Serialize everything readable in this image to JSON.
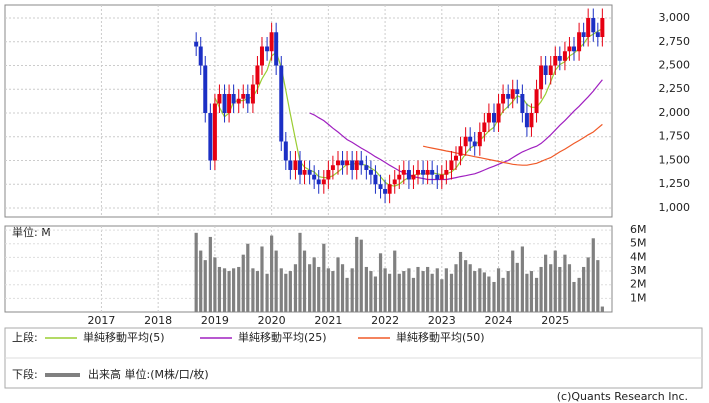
{
  "chart_data": {
    "type": "candlestick",
    "x": [
      2018.67,
      2018.75,
      2018.83,
      2018.92,
      2019,
      2019.08,
      2019.17,
      2019.25,
      2019.33,
      2019.42,
      2019.5,
      2019.58,
      2019.67,
      2019.75,
      2019.83,
      2019.92,
      2020,
      2020.08,
      2020.17,
      2020.25,
      2020.33,
      2020.42,
      2020.5,
      2020.58,
      2020.67,
      2020.75,
      2020.83,
      2020.92,
      2021,
      2021.08,
      2021.17,
      2021.25,
      2021.33,
      2021.42,
      2021.5,
      2021.58,
      2021.67,
      2021.75,
      2021.83,
      2021.92,
      2022,
      2022.08,
      2022.17,
      2022.25,
      2022.33,
      2022.42,
      2022.5,
      2022.58,
      2022.67,
      2022.75,
      2022.83,
      2022.92,
      2023,
      2023.08,
      2023.17,
      2023.25,
      2023.33,
      2023.42,
      2023.5,
      2023.58,
      2023.67,
      2023.75,
      2023.83,
      2023.92,
      2024,
      2024.08,
      2024.17,
      2024.25,
      2024.33,
      2024.42,
      2024.5,
      2024.58,
      2024.67,
      2024.75,
      2024.83,
      2024.92,
      2025,
      2025.08,
      2025.17,
      2025.25,
      2025.33,
      2025.42,
      2025.5,
      2025.58,
      2025.67,
      2025.75,
      2025.83
    ],
    "open": [
      2750,
      2700,
      2500,
      2000,
      1500,
      2100,
      2200,
      2000,
      2200,
      2100,
      2150,
      2200,
      2100,
      2300,
      2500,
      2700,
      2650,
      2850,
      2500,
      1700,
      1500,
      1400,
      1500,
      1350,
      1400,
      1350,
      1300,
      1250,
      1300,
      1400,
      1450,
      1500,
      1450,
      1500,
      1400,
      1500,
      1450,
      1400,
      1350,
      1250,
      1200,
      1150,
      1250,
      1300,
      1350,
      1400,
      1300,
      1350,
      1400,
      1350,
      1400,
      1350,
      1300,
      1350,
      1400,
      1500,
      1550,
      1650,
      1750,
      1700,
      1650,
      1800,
      1900,
      2000,
      1900,
      2100,
      2200,
      2150,
      2250,
      2200,
      2000,
      1850,
      2000,
      2250,
      2500,
      2400,
      2500,
      2600,
      2550,
      2650,
      2700,
      2650,
      2850,
      2800,
      3000,
      2850,
      2800
    ],
    "high": [
      2850,
      2800,
      2600,
      2100,
      2200,
      2300,
      2300,
      2300,
      2300,
      2250,
      2300,
      2300,
      2400,
      2600,
      2800,
      2800,
      2950,
      2950,
      2600,
      1800,
      1600,
      1600,
      1600,
      1500,
      1500,
      1450,
      1400,
      1400,
      1500,
      1550,
      1600,
      1600,
      1600,
      1600,
      1600,
      1600,
      1550,
      1500,
      1450,
      1350,
      1300,
      1350,
      1400,
      1450,
      1500,
      1500,
      1450,
      1500,
      1500,
      1500,
      1500,
      1450,
      1450,
      1500,
      1600,
      1650,
      1750,
      1850,
      1850,
      1800,
      1900,
      2000,
      2100,
      2100,
      2200,
      2300,
      2300,
      2350,
      2350,
      2300,
      2100,
      2100,
      2350,
      2600,
      2600,
      2600,
      2700,
      2700,
      2750,
      2800,
      2800,
      2950,
      2950,
      3100,
      3100,
      2950,
      3100
    ],
    "low": [
      2600,
      2400,
      1900,
      1400,
      1400,
      2000,
      1900,
      1900,
      2000,
      2000,
      2050,
      2000,
      2000,
      2200,
      2400,
      2550,
      2550,
      2400,
      1600,
      1400,
      1300,
      1300,
      1250,
      1250,
      1250,
      1200,
      1150,
      1150,
      1200,
      1300,
      1350,
      1350,
      1350,
      1300,
      1300,
      1350,
      1300,
      1250,
      1150,
      1100,
      1050,
      1050,
      1150,
      1200,
      1250,
      1200,
      1200,
      1250,
      1250,
      1250,
      1250,
      1200,
      1200,
      1250,
      1300,
      1400,
      1450,
      1550,
      1600,
      1550,
      1550,
      1700,
      1800,
      1800,
      1800,
      2000,
      2050,
      2050,
      2100,
      1900,
      1750,
      1750,
      1900,
      2150,
      2300,
      2300,
      2400,
      2450,
      2450,
      2550,
      2550,
      2550,
      2700,
      2700,
      2750,
      2700,
      2700
    ],
    "close": [
      2700,
      2500,
      2000,
      1500,
      2100,
      2200,
      2000,
      2200,
      2100,
      2150,
      2200,
      2100,
      2300,
      2500,
      2700,
      2650,
      2850,
      2500,
      1700,
      1500,
      1400,
      1500,
      1350,
      1400,
      1350,
      1300,
      1250,
      1300,
      1400,
      1450,
      1500,
      1450,
      1500,
      1400,
      1500,
      1450,
      1400,
      1350,
      1250,
      1200,
      1150,
      1250,
      1300,
      1350,
      1400,
      1300,
      1350,
      1400,
      1350,
      1400,
      1350,
      1300,
      1350,
      1400,
      1500,
      1550,
      1650,
      1750,
      1700,
      1650,
      1800,
      1900,
      2000,
      1900,
      2100,
      2200,
      2150,
      2250,
      2200,
      2000,
      1850,
      2000,
      2250,
      2500,
      2400,
      2500,
      2600,
      2550,
      2650,
      2700,
      2650,
      2850,
      2800,
      3000,
      2850,
      2800,
      3000
    ],
    "up_color": "#e60012",
    "down_color": "#1c2fc4",
    "xlim": [
      2015.3,
      2026
    ],
    "xticks": [
      2017,
      2018,
      2019,
      2020,
      2021,
      2022,
      2023,
      2024,
      2025
    ],
    "ylim": [
      905,
      3137
    ],
    "yticks": [
      {
        "value": 1000,
        "label": "1,000"
      },
      {
        "value": 1250,
        "label": "1,250"
      },
      {
        "value": 1500,
        "label": "1,500"
      },
      {
        "value": 1750,
        "label": "1,750"
      },
      {
        "value": 2000,
        "label": "2,000"
      },
      {
        "value": 2250,
        "label": "2,250"
      },
      {
        "value": 2500,
        "label": "2,500"
      },
      {
        "value": 2750,
        "label": "2,750"
      },
      {
        "value": 3000,
        "label": "3,000"
      }
    ],
    "grid": true,
    "series": [
      {
        "name": "単純移動平均(5)",
        "color": "#9acd32",
        "values": [
          null,
          null,
          null,
          null,
          2160,
          2060,
          1960,
          2000,
          2120,
          2130,
          2130,
          2150,
          2170,
          2250,
          2360,
          2450,
          2600,
          2640,
          2480,
          2240,
          1990,
          1720,
          1490,
          1430,
          1400,
          1380,
          1330,
          1320,
          1320,
          1340,
          1380,
          1420,
          1460,
          1460,
          1470,
          1460,
          1450,
          1420,
          1390,
          1330,
          1270,
          1240,
          1230,
          1250,
          1290,
          1320,
          1340,
          1360,
          1360,
          1360,
          1370,
          1360,
          1350,
          1360,
          1380,
          1420,
          1490,
          1570,
          1630,
          1660,
          1710,
          1760,
          1810,
          1850,
          1940,
          2020,
          2070,
          2120,
          2180,
          2160,
          2090,
          2060,
          2060,
          2120,
          2200,
          2330,
          2450,
          2510,
          2540,
          2600,
          2630,
          2680,
          2730,
          2800,
          2830,
          2860,
          2890
        ]
      },
      {
        "name": "単純移動平均(25)",
        "color": "#a020c0",
        "values": [
          null,
          null,
          null,
          null,
          null,
          null,
          null,
          null,
          null,
          null,
          null,
          null,
          null,
          null,
          null,
          null,
          null,
          null,
          null,
          null,
          null,
          null,
          null,
          null,
          2000,
          1980,
          1950,
          1920,
          1880,
          1840,
          1800,
          1760,
          1720,
          1690,
          1660,
          1630,
          1600,
          1570,
          1540,
          1510,
          1480,
          1450,
          1420,
          1390,
          1370,
          1350,
          1330,
          1320,
          1310,
          1300,
          1300,
          1300,
          1300,
          1300,
          1310,
          1320,
          1330,
          1340,
          1350,
          1360,
          1380,
          1400,
          1420,
          1440,
          1460,
          1480,
          1500,
          1530,
          1560,
          1590,
          1610,
          1630,
          1650,
          1680,
          1720,
          1770,
          1820,
          1870,
          1920,
          1970,
          2020,
          2070,
          2120,
          2170,
          2230,
          2290,
          2350
        ]
      },
      {
        "name": "単純移動平均(50)",
        "color": "#f05a28",
        "values": [
          null,
          null,
          null,
          null,
          null,
          null,
          null,
          null,
          null,
          null,
          null,
          null,
          null,
          null,
          null,
          null,
          null,
          null,
          null,
          null,
          null,
          null,
          null,
          null,
          null,
          null,
          null,
          null,
          null,
          null,
          null,
          null,
          null,
          null,
          null,
          null,
          null,
          null,
          null,
          null,
          null,
          null,
          null,
          null,
          null,
          null,
          null,
          null,
          1650,
          1640,
          1630,
          1620,
          1610,
          1600,
          1590,
          1580,
          1570,
          1560,
          1550,
          1540,
          1530,
          1520,
          1510,
          1500,
          1490,
          1480,
          1470,
          1460,
          1455,
          1450,
          1450,
          1460,
          1470,
          1490,
          1510,
          1530,
          1560,
          1590,
          1620,
          1650,
          1680,
          1710,
          1740,
          1770,
          1800,
          1840,
          1880
        ]
      }
    ],
    "volume": {
      "label": "単位: M",
      "name": "出来高 単位:(M株/口/枚)",
      "color": "#808080",
      "ylim": [
        0,
        6.3
      ],
      "yticks": [
        {
          "value": 1,
          "label": "1M"
        },
        {
          "value": 2,
          "label": "2M"
        },
        {
          "value": 3,
          "label": "3M"
        },
        {
          "value": 4,
          "label": "4M"
        },
        {
          "value": 5,
          "label": "5M"
        },
        {
          "value": 6,
          "label": "6M"
        }
      ],
      "values": [
        5.8,
        4.5,
        3.8,
        5.5,
        4.0,
        3.3,
        3.2,
        3.0,
        3.2,
        3.3,
        4.2,
        5.0,
        3.2,
        3.0,
        4.8,
        2.8,
        5.6,
        4.5,
        3.2,
        2.8,
        3.0,
        3.5,
        5.8,
        4.5,
        3.5,
        4.0,
        3.3,
        5.0,
        3.2,
        3.0,
        4.0,
        3.5,
        2.5,
        3.2,
        5.5,
        5.3,
        3.3,
        3.0,
        2.6,
        4.3,
        3.2,
        2.8,
        4.5,
        2.8,
        3.0,
        3.2,
        2.5,
        3.3,
        3.0,
        3.3,
        2.8,
        3.2,
        2.4,
        3.2,
        2.8,
        3.5,
        4.4,
        3.8,
        3.5,
        3.0,
        3.2,
        2.9,
        2.6,
        2.2,
        3.2,
        2.5,
        3.0,
        4.5,
        3.6,
        4.8,
        2.8,
        3.0,
        2.5,
        3.3,
        4.2,
        3.5,
        4.5,
        3.3,
        4.2,
        3.5,
        2.2,
        2.5,
        3.3,
        4.0,
        5.4,
        3.8,
        0.4
      ]
    },
    "legend": {
      "upper_label": "上段:",
      "lower_label": "下段:"
    },
    "credit": "(c)Quants Research Inc."
  }
}
